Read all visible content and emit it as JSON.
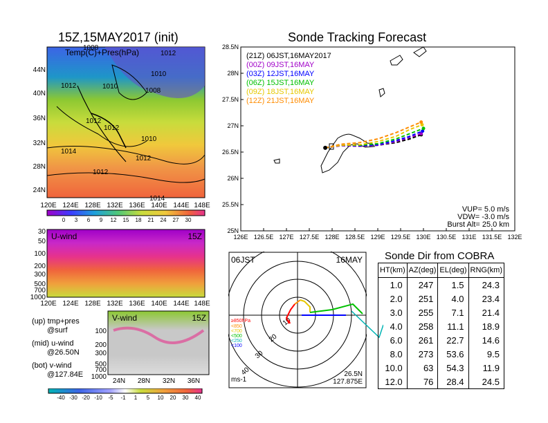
{
  "left": {
    "title": "15Z,15MAY2017 (init)",
    "map_label": "Temp(C)+Pres(hPa)",
    "map_lat_ticks": [
      "44N",
      "40N",
      "36N",
      "32N",
      "28N",
      "24N"
    ],
    "map_lon_ticks": [
      "120E",
      "124E",
      "128E",
      "132E",
      "136E",
      "140E",
      "144E",
      "148E"
    ],
    "pressure_labels": [
      "1008",
      "1012",
      "1012",
      "1010",
      "1008",
      "1010",
      "1012",
      "1012",
      "1010",
      "1014",
      "1012",
      "1012",
      "1014"
    ],
    "temp_colorbar": [
      "0",
      "3",
      "6",
      "9",
      "12",
      "15",
      "18",
      "21",
      "24",
      "27",
      "30"
    ],
    "uwind_label": "U-wind",
    "uwind_time": "15Z",
    "uwind_p_ticks": [
      "30",
      "50",
      "100",
      "200",
      "300",
      "500",
      "700",
      "1000"
    ],
    "uwind_lon_ticks": [
      "120E",
      "124E",
      "128E",
      "132E",
      "136E",
      "140E",
      "144E",
      "148E"
    ],
    "vwind_label": "V-wind",
    "vwind_time": "15Z",
    "vwind_p_ticks": [
      "100",
      "200",
      "300",
      "500",
      "700",
      "1000"
    ],
    "vwind_lat_ticks": [
      "24N",
      "28N",
      "32N",
      "36N"
    ],
    "legend": {
      "up1": "(up) tmp+pres",
      "up2": "@surf",
      "mid1": "(mid) u-wind",
      "mid2": "@26.50N",
      "bot1": "(bot) v-wind",
      "bot2": "@127.84E"
    },
    "wind_colorbar": [
      "-40",
      "-30",
      "-20",
      "-10",
      "-5",
      "-1",
      "1",
      "5",
      "10",
      "20",
      "30",
      "40"
    ]
  },
  "chart_data": {
    "type": "line",
    "title": "Sonde Tracking Forecast",
    "xlim": [
      126,
      132
    ],
    "ylim": [
      25,
      28.5
    ],
    "x_ticks": [
      "126E",
      "126.5E",
      "127E",
      "127.5E",
      "128E",
      "128.5E",
      "129E",
      "129.5E",
      "130E",
      "130.5E",
      "131E",
      "131.5E",
      "132E"
    ],
    "y_ticks": [
      "25N",
      "25.5N",
      "26N",
      "26.5N",
      "27N",
      "27.5N",
      "28N",
      "28.5N"
    ],
    "legend": [
      {
        "label": "(21Z)  06JST,16MAY2017",
        "color": "#000000"
      },
      {
        "label": "(00Z)  09JST,16MAY",
        "color": "#a000c8"
      },
      {
        "label": "(03Z)  12JST,16MAY",
        "color": "#0000ff"
      },
      {
        "label": "(06Z)  15JST,16MAY",
        "color": "#00c000"
      },
      {
        "label": "(09Z)  18JST,16MAY",
        "color": "#e6c800"
      },
      {
        "label": "(12Z)  21JST,16MAY",
        "color": "#ff8c00"
      }
    ],
    "series": [
      {
        "color": "#000000",
        "x": [
          127.85,
          128.2,
          128.6,
          129.0,
          129.4,
          129.7,
          129.95
        ],
        "y": [
          26.58,
          26.63,
          26.62,
          26.63,
          26.68,
          26.75,
          26.83
        ]
      },
      {
        "color": "#a000c8",
        "x": [
          127.85,
          128.2,
          128.6,
          129.0,
          129.4,
          129.7,
          129.95
        ],
        "y": [
          26.58,
          26.62,
          26.61,
          26.63,
          26.7,
          26.78,
          26.85
        ]
      },
      {
        "color": "#0000ff",
        "x": [
          127.85,
          128.2,
          128.6,
          129.0,
          129.4,
          129.7,
          129.98
        ],
        "y": [
          26.58,
          26.63,
          26.62,
          26.64,
          26.72,
          26.8,
          26.9
        ]
      },
      {
        "color": "#00c000",
        "x": [
          127.85,
          128.2,
          128.6,
          129.0,
          129.4,
          129.7,
          130.0
        ],
        "y": [
          26.58,
          26.63,
          26.63,
          26.66,
          26.75,
          26.85,
          26.95
        ]
      },
      {
        "color": "#e6c800",
        "x": [
          127.85,
          128.2,
          128.6,
          129.0,
          129.4,
          129.7,
          129.97
        ],
        "y": [
          26.58,
          26.63,
          26.64,
          26.7,
          26.8,
          26.93,
          27.02
        ]
      },
      {
        "color": "#ff8c00",
        "x": [
          127.85,
          128.2,
          128.6,
          129.0,
          129.4,
          129.7,
          129.95
        ],
        "y": [
          26.58,
          26.65,
          26.68,
          26.75,
          26.87,
          26.98,
          27.07
        ]
      }
    ],
    "notes": {
      "vup": "VUP= 5.0 m/s",
      "vdw": "VDW= -3.0 m/s",
      "burst": "Burst Alt= 25.0 km"
    }
  },
  "polar": {
    "time": "06JST",
    "date": "16MAY",
    "ring_labels": [
      "10",
      "20",
      "30",
      "40"
    ],
    "levels": [
      {
        "label": "≥850hPa",
        "color": "#ff0000"
      },
      {
        "label": "<850",
        "color": "#ff8c00"
      },
      {
        "label": "<700",
        "color": "#e6c800"
      },
      {
        "label": "<500",
        "color": "#00c000"
      },
      {
        "label": "<250",
        "color": "#00b4b4"
      },
      {
        "label": "<100",
        "color": "#0000ff"
      }
    ],
    "unit": "ms-1",
    "lat": "26.5N",
    "lon": "127.875E"
  },
  "sonde_dir": {
    "title": "Sonde Dir from COBRA",
    "headers": [
      "HT(km)",
      "AZ(deg)",
      "EL(deg)",
      "RNG(km)"
    ],
    "rows": [
      [
        "1.0",
        "247",
        "1.5",
        "24.3"
      ],
      [
        "2.0",
        "251",
        "4.0",
        "23.4"
      ],
      [
        "3.0",
        "255",
        "7.1",
        "21.4"
      ],
      [
        "4.0",
        "258",
        "11.1",
        "18.9"
      ],
      [
        "6.0",
        "261",
        "22.7",
        "14.6"
      ],
      [
        "8.0",
        "273",
        "53.6",
        "9.5"
      ],
      [
        "10.0",
        "63",
        "54.3",
        "11.9"
      ],
      [
        "12.0",
        "76",
        "28.4",
        "24.5"
      ]
    ]
  }
}
